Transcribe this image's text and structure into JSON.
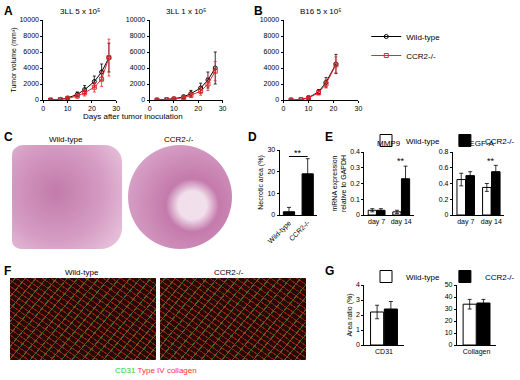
{
  "chart_data": [
    {
      "panel": "A",
      "type": "line",
      "title": "3LL 5 x 10⁵",
      "y_label": "Tumor volume (mm³)",
      "x_label": "Days after tumor inoculation",
      "x": [
        3,
        7,
        10,
        14,
        17,
        21,
        24,
        27
      ],
      "xlim": [
        0,
        30
      ],
      "xticks": [
        0,
        10,
        20,
        30
      ],
      "ylim": [
        0,
        10000
      ],
      "yticks": [
        0,
        2000,
        4000,
        6000,
        8000,
        10000
      ],
      "series": [
        {
          "name": "Wild-type",
          "color": "#000000",
          "marker": "circle-open",
          "values": [
            0,
            80,
            250,
            700,
            1300,
            2300,
            3500,
            5300
          ],
          "error": [
            0,
            40,
            100,
            300,
            500,
            700,
            1000,
            1800
          ]
        },
        {
          "name": "CCR2-/-",
          "color": "#e8262b",
          "marker": "square-open",
          "values": [
            0,
            60,
            200,
            500,
            900,
            1600,
            2600,
            5300
          ],
          "error": [
            0,
            30,
            80,
            250,
            400,
            600,
            900,
            2300
          ]
        }
      ]
    },
    {
      "type": "line",
      "title": "3LL 1 x 10⁵",
      "x": [
        3,
        7,
        10,
        14,
        17,
        21,
        24,
        27
      ],
      "xlim": [
        0,
        30
      ],
      "xticks": [
        0,
        10,
        20,
        30
      ],
      "ylim": [
        0,
        10000
      ],
      "yticks": [
        0,
        2000,
        4000,
        6000,
        8000,
        10000
      ],
      "series": [
        {
          "name": "Wild-type",
          "color": "#000000",
          "marker": "circle-open",
          "values": [
            0,
            50,
            150,
            400,
            800,
            1500,
            2500,
            4000
          ],
          "error": [
            0,
            30,
            80,
            200,
            400,
            600,
            1000,
            2000
          ]
        },
        {
          "name": "CCR2-/-",
          "color": "#e8262b",
          "marker": "square-open",
          "values": [
            0,
            40,
            120,
            300,
            600,
            1100,
            2000,
            3600
          ],
          "error": [
            0,
            20,
            60,
            150,
            300,
            500,
            800,
            1200
          ]
        }
      ]
    },
    {
      "panel": "B",
      "type": "line",
      "title": "B16 5 x 10⁵",
      "legend": "top right",
      "x": [
        3,
        7,
        10,
        14,
        17,
        21
      ],
      "xlim": [
        0,
        30
      ],
      "xticks": [
        0,
        10,
        20,
        30
      ],
      "ylim": [
        0,
        10000
      ],
      "yticks": [
        0,
        2000,
        4000,
        6000,
        8000,
        10000
      ],
      "series": [
        {
          "name": "Wild-type",
          "color": "#000000",
          "marker": "circle-open",
          "values": [
            0,
            50,
            300,
            1000,
            2200,
            4500
          ],
          "error": [
            0,
            30,
            100,
            300,
            600,
            1200
          ]
        },
        {
          "name": "CCR2-/-",
          "color": "#e8262b",
          "marker": "square-open",
          "values": [
            0,
            50,
            250,
            900,
            2000,
            4400
          ],
          "error": [
            0,
            30,
            80,
            250,
            500,
            1000
          ]
        }
      ]
    },
    {
      "panel": "D",
      "type": "bar",
      "y_label": "Necrotic area (%)",
      "categories": [
        "Wild-type",
        "CCR2-/-"
      ],
      "values": [
        1.5,
        19
      ],
      "error": [
        2,
        7
      ],
      "color": "#000000",
      "ylim": [
        0,
        30
      ],
      "yticks": [
        0,
        10,
        20,
        30
      ],
      "annotations": [
        {
          "text": "**",
          "from": "Wild-type",
          "to": "CCR2-/-",
          "y": 27
        }
      ]
    },
    {
      "panel": "E",
      "type": "bar",
      "title": "MMP9",
      "y_label": "mRNA expression\nrelative to GAPDH",
      "categories": [
        "day 7",
        "day 14"
      ],
      "series": [
        {
          "name": "Wild-type",
          "color": "#ffffff",
          "values": [
            0.03,
            0.02
          ],
          "error": [
            0.01,
            0.01
          ]
        },
        {
          "name": "CCR2-/-",
          "color": "#000000",
          "values": [
            0.03,
            0.23
          ],
          "error": [
            0.01,
            0.08
          ]
        }
      ],
      "ylim": [
        0,
        0.4
      ],
      "yticks": [
        0,
        0.1,
        0.2,
        0.3,
        0.4
      ],
      "annotations": [
        {
          "text": "**",
          "at": "day 14",
          "y": 0.32
        }
      ]
    },
    {
      "type": "bar",
      "title": "VEGF-A",
      "legend": "top right",
      "categories": [
        "day 7",
        "day 14"
      ],
      "series": [
        {
          "name": "Wild-type",
          "color": "#ffffff",
          "values": [
            0.45,
            0.35
          ],
          "error": [
            0.08,
            0.05
          ]
        },
        {
          "name": "CCR2-/-",
          "color": "#000000",
          "values": [
            0.5,
            0.55
          ],
          "error": [
            0.05,
            0.08
          ]
        }
      ],
      "ylim": [
        0,
        0.8
      ],
      "yticks": [
        0,
        0.2,
        0.4,
        0.6,
        0.8
      ],
      "annotations": [
        {
          "text": "**",
          "at": "day 14",
          "y": 0.64
        }
      ]
    },
    {
      "panel": "G",
      "type": "bar",
      "y_label": "Area ratio (%)",
      "categories": [
        "CD31"
      ],
      "series": [
        {
          "name": "Wild-type",
          "color": "#ffffff",
          "values": [
            2.2
          ],
          "error": [
            0.45
          ]
        },
        {
          "name": "CCR2-/-",
          "color": "#000000",
          "values": [
            2.4
          ],
          "error": [
            0.5
          ]
        }
      ],
      "ylim": [
        0,
        4
      ],
      "yticks": [
        0,
        1,
        2,
        3,
        4
      ]
    },
    {
      "type": "bar",
      "legend": "top right",
      "categories": [
        "Collagen"
      ],
      "series": [
        {
          "name": "Wild-type",
          "color": "#ffffff",
          "values": [
            34
          ],
          "error": [
            4
          ]
        },
        {
          "name": "CCR2-/-",
          "color": "#000000",
          "values": [
            35
          ],
          "error": [
            3
          ]
        }
      ],
      "ylim": [
        0,
        50
      ],
      "yticks": [
        0,
        10,
        20,
        30,
        40,
        50
      ]
    }
  ],
  "images": [
    {
      "panel": "C",
      "labels": [
        "Wild-type",
        "CCR2-/-"
      ]
    },
    {
      "panel": "F",
      "labels": [
        "Wild-type",
        "CCR2-/-"
      ],
      "caption": [
        {
          "text": "CD31",
          "color": "#33cc33"
        },
        {
          "text": "Type IV collagen",
          "color": "#ff3333"
        }
      ]
    }
  ]
}
